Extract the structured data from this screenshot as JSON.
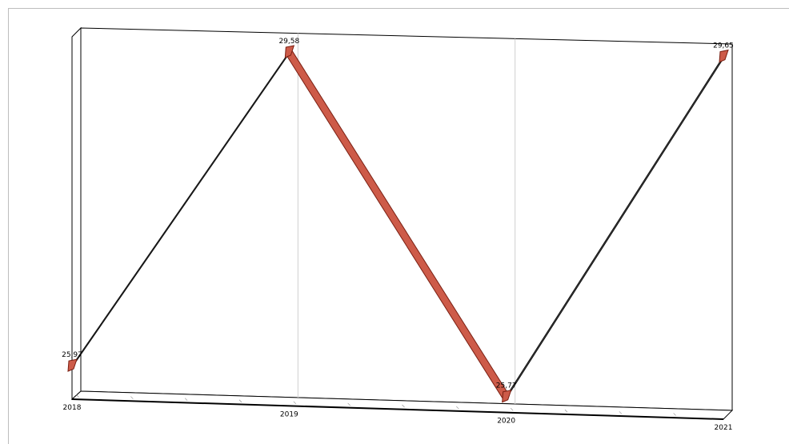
{
  "chart_data": {
    "type": "line",
    "style": "3d-ribbon",
    "title": "",
    "xlabel": "",
    "ylabel": "",
    "x": [
      "2018",
      "2019",
      "2020",
      "2021"
    ],
    "series": [
      {
        "values": [
          25.97,
          29.58,
          25.77,
          29.65
        ],
        "labels": [
          "25,97",
          "29,58",
          "25,77",
          "29,65"
        ]
      }
    ],
    "ylim": [
      25.6,
      29.7
    ],
    "grid": "vertical",
    "legend": "none",
    "colors": {
      "ribbon": "#cd5b49",
      "ribbon_dark": "#7a1f12",
      "axis": "#000000",
      "grid": "#cfcfcf"
    }
  }
}
